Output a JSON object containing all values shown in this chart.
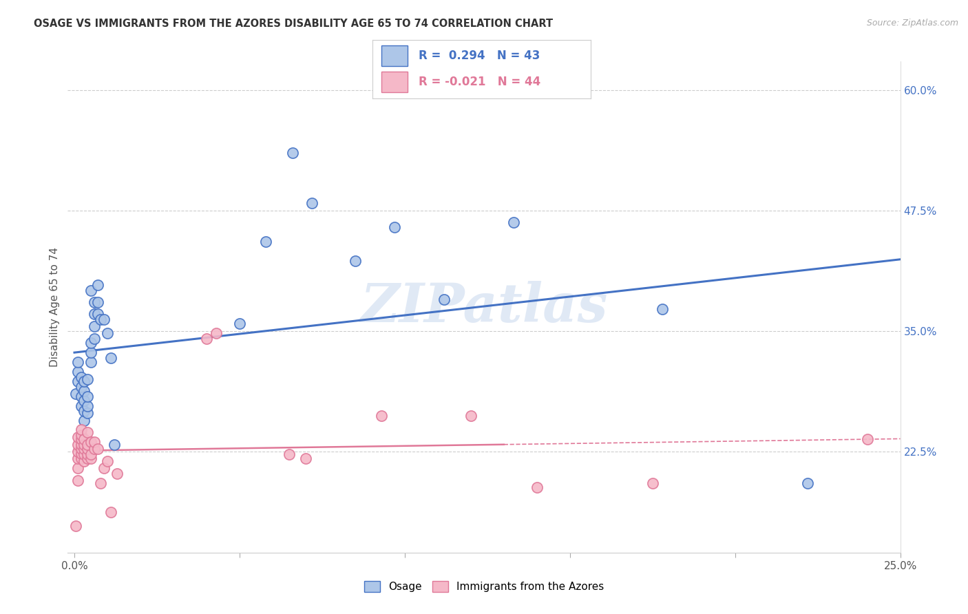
{
  "title": "OSAGE VS IMMIGRANTS FROM THE AZORES DISABILITY AGE 65 TO 74 CORRELATION CHART",
  "source": "Source: ZipAtlas.com",
  "ylabel": "Disability Age 65 to 74",
  "xlim": [
    -0.002,
    0.25
  ],
  "ylim": [
    0.12,
    0.63
  ],
  "xtick_positions": [
    0.0,
    0.05,
    0.1,
    0.15,
    0.2,
    0.25
  ],
  "xticklabels": [
    "0.0%",
    "",
    "",
    "",
    "",
    "25.0%"
  ],
  "ytick_right_positions": [
    0.225,
    0.35,
    0.475,
    0.6
  ],
  "ytick_right_labels": [
    "22.5%",
    "35.0%",
    "47.5%",
    "60.0%"
  ],
  "blue_R": 0.294,
  "blue_N": 43,
  "pink_R": -0.021,
  "pink_N": 44,
  "osage_color": "#adc6e8",
  "azores_color": "#f5b8c8",
  "blue_line_color": "#4472c4",
  "pink_line_color": "#e07898",
  "watermark": "ZIPatlas",
  "osage_x": [
    0.0005,
    0.001,
    0.001,
    0.001,
    0.002,
    0.002,
    0.002,
    0.002,
    0.003,
    0.003,
    0.003,
    0.003,
    0.003,
    0.004,
    0.004,
    0.004,
    0.004,
    0.005,
    0.005,
    0.005,
    0.005,
    0.006,
    0.006,
    0.006,
    0.006,
    0.007,
    0.007,
    0.007,
    0.008,
    0.009,
    0.01,
    0.011,
    0.012,
    0.05,
    0.058,
    0.066,
    0.072,
    0.085,
    0.097,
    0.112,
    0.133,
    0.178,
    0.222
  ],
  "osage_y": [
    0.285,
    0.298,
    0.308,
    0.318,
    0.272,
    0.282,
    0.292,
    0.302,
    0.257,
    0.267,
    0.278,
    0.288,
    0.298,
    0.265,
    0.272,
    0.282,
    0.3,
    0.318,
    0.328,
    0.338,
    0.392,
    0.342,
    0.355,
    0.368,
    0.38,
    0.368,
    0.38,
    0.398,
    0.362,
    0.362,
    0.348,
    0.322,
    0.232,
    0.358,
    0.443,
    0.535,
    0.483,
    0.423,
    0.458,
    0.383,
    0.463,
    0.373,
    0.192
  ],
  "azores_x": [
    0.0005,
    0.001,
    0.001,
    0.001,
    0.001,
    0.001,
    0.001,
    0.002,
    0.002,
    0.002,
    0.002,
    0.002,
    0.002,
    0.002,
    0.003,
    0.003,
    0.003,
    0.003,
    0.003,
    0.004,
    0.004,
    0.004,
    0.004,
    0.004,
    0.005,
    0.005,
    0.005,
    0.006,
    0.006,
    0.007,
    0.008,
    0.009,
    0.01,
    0.011,
    0.013,
    0.04,
    0.043,
    0.065,
    0.07,
    0.093,
    0.12,
    0.14,
    0.175,
    0.24
  ],
  "azores_y": [
    0.148,
    0.195,
    0.208,
    0.218,
    0.225,
    0.232,
    0.24,
    0.218,
    0.223,
    0.228,
    0.232,
    0.238,
    0.242,
    0.248,
    0.215,
    0.222,
    0.228,
    0.232,
    0.238,
    0.218,
    0.222,
    0.228,
    0.232,
    0.245,
    0.218,
    0.222,
    0.235,
    0.228,
    0.235,
    0.228,
    0.192,
    0.208,
    0.215,
    0.162,
    0.202,
    0.342,
    0.348,
    0.222,
    0.218,
    0.262,
    0.262,
    0.188,
    0.192,
    0.238
  ]
}
